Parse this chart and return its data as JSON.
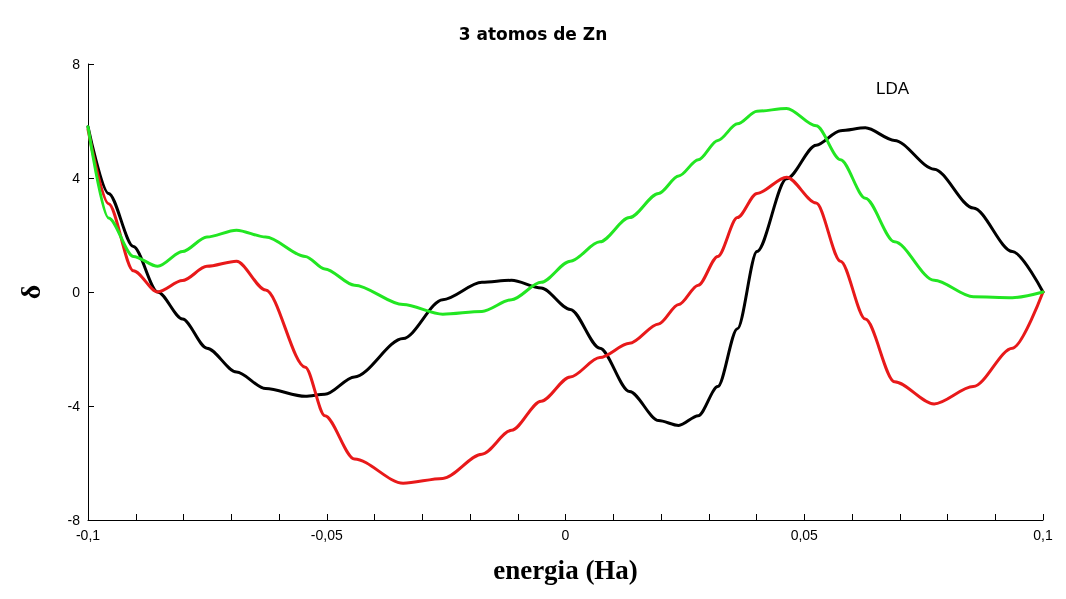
{
  "chart_data": {
    "type": "line",
    "title": "3 atomos de Zn",
    "xlabel": "energia (Ha)",
    "ylabel": "δ",
    "x": [
      -0.1,
      -0.0957,
      -0.0905,
      -0.0854,
      -0.0802,
      -0.0751,
      -0.0689,
      -0.0628,
      -0.0545,
      -0.0504,
      -0.0442,
      -0.034,
      -0.0257,
      -0.0175,
      -0.0113,
      -0.0051,
      0.001,
      0.0072,
      0.0134,
      0.0195,
      0.0237,
      0.0278,
      0.0319,
      0.036,
      0.0401,
      0.0463,
      0.0525,
      0.0576,
      0.0628,
      0.0689,
      0.0772,
      0.0854,
      0.0936,
      0.1
    ],
    "series": [
      {
        "color": "#000000",
        "values": [
          5.8,
          3.46,
          1.6,
          0,
          -0.95,
          -1.97,
          -2.81,
          -3.39,
          -3.66,
          -3.59,
          -2.98,
          -1.63,
          -0.27,
          0.34,
          0.41,
          0.14,
          -0.61,
          -1.97,
          -3.49,
          -4.51,
          -4.68,
          -4.34,
          -3.32,
          -1.29,
          1.42,
          3.97,
          5.15,
          5.66,
          5.76,
          5.32,
          4.31,
          2.95,
          1.42,
          0
        ]
      },
      {
        "color": "#e8191a",
        "values": [
          5.7,
          3.1,
          0.75,
          0,
          0.4,
          0.9,
          1.08,
          0.07,
          -2.64,
          -4.34,
          -5.86,
          -6.71,
          -6.54,
          -5.69,
          -4.85,
          -3.83,
          -2.98,
          -2.3,
          -1.8,
          -1.12,
          -0.44,
          0.24,
          1.25,
          2.61,
          3.46,
          4.03,
          3.12,
          1.08,
          -0.95,
          -3.15,
          -3.93,
          -3.32,
          -1.97,
          0
        ]
      },
      {
        "color": "#22e622",
        "values": [
          5.8,
          2.6,
          1.25,
          0.9,
          1.42,
          1.93,
          2.17,
          1.93,
          1.25,
          0.81,
          0.24,
          -0.44,
          -0.78,
          -0.68,
          -0.27,
          0.34,
          1.08,
          1.76,
          2.61,
          3.46,
          4.07,
          4.64,
          5.32,
          5.9,
          6.34,
          6.44,
          5.83,
          4.64,
          3.29,
          1.76,
          0.41,
          -0.17,
          -0.2,
          0
        ]
      }
    ],
    "annotations": [
      "LDA"
    ],
    "xlim": [
      -0.1,
      0.1
    ],
    "xticks": [
      {
        "value": -0.1,
        "label": "-0,1"
      },
      {
        "value": -0.09,
        "label": null
      },
      {
        "value": -0.08,
        "label": null
      },
      {
        "value": -0.07,
        "label": null
      },
      {
        "value": -0.06,
        "label": null
      },
      {
        "value": -0.05,
        "label": "-0,05"
      },
      {
        "value": -0.04,
        "label": null
      },
      {
        "value": -0.03,
        "label": null
      },
      {
        "value": -0.02,
        "label": null
      },
      {
        "value": -0.01,
        "label": null
      },
      0,
      {
        "value": 0.01,
        "label": null
      },
      {
        "value": 0.02,
        "label": null
      },
      {
        "value": 0.03,
        "label": null
      },
      {
        "value": 0.04,
        "label": null
      },
      {
        "value": 0.05,
        "label": "0,05"
      },
      {
        "value": 0.06,
        "label": null
      },
      {
        "value": 0.07,
        "label": null
      },
      {
        "value": 0.08,
        "label": null
      },
      {
        "value": 0.09,
        "label": null
      },
      {
        "value": 0.1,
        "label": "0,1"
      }
    ],
    "ylim": [
      -8,
      8
    ],
    "yticks": [
      -8,
      -4,
      0,
      4,
      8
    ],
    "grid": false,
    "marker": "none",
    "line_style": "solid"
  }
}
